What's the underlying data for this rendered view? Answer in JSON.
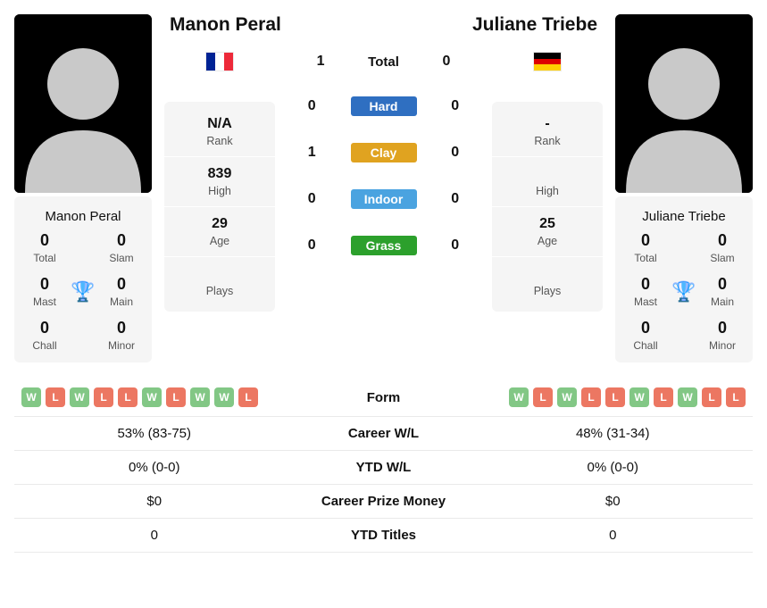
{
  "colors": {
    "card_bg": "#f5f5f5",
    "text_muted": "#555555",
    "trophy": "#4a7ec9",
    "form_win": "#82c785",
    "form_loss": "#ec7762",
    "surface_hard": "#2f6fc1",
    "surface_clay": "#e0a320",
    "surface_indoor": "#4aa3e0",
    "surface_grass": "#2ca02c"
  },
  "player1": {
    "name": "Manon Peral",
    "flag": [
      "#002395",
      "#ffffff",
      "#ed2939"
    ],
    "rank": "N/A",
    "high": "839",
    "age": "29",
    "plays": "",
    "titles": {
      "total": "0",
      "slam": "0",
      "mast": "0",
      "main": "0",
      "chall": "0",
      "minor": "0"
    },
    "career_wl": "53% (83-75)",
    "ytd_wl": "0% (0-0)",
    "prize": "$0",
    "ytd_titles": "0",
    "form": [
      "W",
      "L",
      "W",
      "L",
      "L",
      "W",
      "L",
      "W",
      "W",
      "L"
    ]
  },
  "player2": {
    "name": "Juliane Triebe",
    "flag": [
      "#000000",
      "#dd0000",
      "#ffce00"
    ],
    "rank": "-",
    "high": "",
    "age": "25",
    "plays": "",
    "titles": {
      "total": "0",
      "slam": "0",
      "mast": "0",
      "main": "0",
      "chall": "0",
      "minor": "0"
    },
    "career_wl": "48% (31-34)",
    "ytd_wl": "0% (0-0)",
    "prize": "$0",
    "ytd_titles": "0",
    "form": [
      "W",
      "L",
      "W",
      "L",
      "L",
      "W",
      "L",
      "W",
      "L",
      "L"
    ]
  },
  "h2h": {
    "total_label": "Total",
    "total_p1": "1",
    "total_p2": "0",
    "surfaces": [
      {
        "name": "Hard",
        "color_key": "surface_hard",
        "p1": "0",
        "p2": "0"
      },
      {
        "name": "Clay",
        "color_key": "surface_clay",
        "p1": "1",
        "p2": "0"
      },
      {
        "name": "Indoor",
        "color_key": "surface_indoor",
        "p1": "0",
        "p2": "0"
      },
      {
        "name": "Grass",
        "color_key": "surface_grass",
        "p1": "0",
        "p2": "0"
      }
    ]
  },
  "labels": {
    "rank": "Rank",
    "high": "High",
    "age": "Age",
    "plays": "Plays",
    "total": "Total",
    "slam": "Slam",
    "mast": "Mast",
    "main": "Main",
    "chall": "Chall",
    "minor": "Minor",
    "form": "Form",
    "career_wl": "Career W/L",
    "ytd_wl": "YTD W/L",
    "prize": "Career Prize Money",
    "ytd_titles": "YTD Titles"
  }
}
